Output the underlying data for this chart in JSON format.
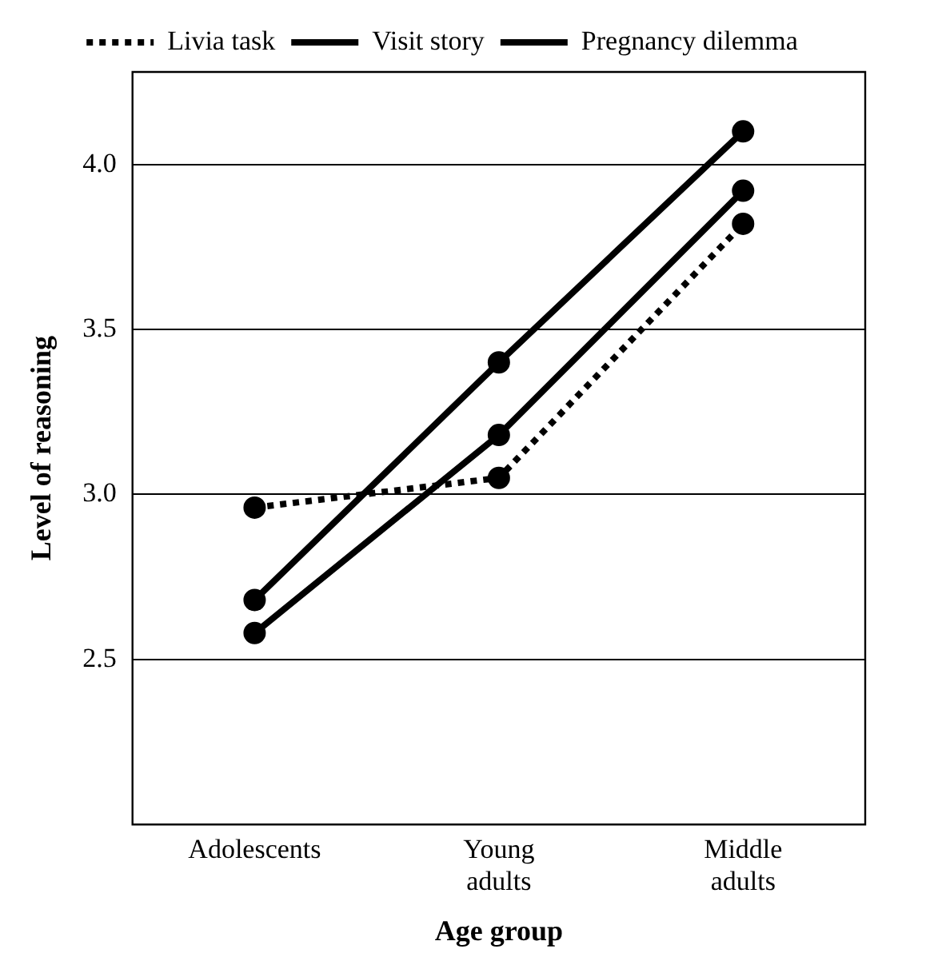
{
  "chart_data": {
    "type": "line",
    "xlabel": "Age group",
    "ylabel": "Level of reasoning",
    "categories": [
      "Adolescents",
      "Young adults",
      "Middle adults"
    ],
    "series": [
      {
        "name": "Livia task",
        "color": "#000000",
        "line_style": "dotted",
        "values": [
          2.96,
          3.05,
          3.82
        ]
      },
      {
        "name": "Visit story",
        "color": "#000000",
        "line_style": "solid",
        "values": [
          2.68,
          3.4,
          4.1
        ]
      },
      {
        "name": "Pregnancy dilemma",
        "color": "#000000",
        "line_style": "solid",
        "values": [
          2.58,
          3.18,
          3.92
        ]
      }
    ],
    "ylim": [
      2,
      4.28
    ],
    "yticks": [
      {
        "value": 2.5,
        "label": "2.5"
      },
      {
        "value": 3,
        "label": "3.0"
      },
      {
        "value": 3.5,
        "label": "3.5"
      },
      {
        "value": 4,
        "label": "4.0"
      }
    ],
    "grid": "y",
    "legend": "top",
    "marker": "circle"
  }
}
